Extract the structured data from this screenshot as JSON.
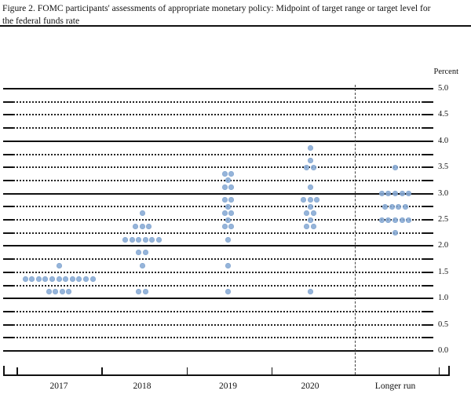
{
  "title": {
    "line1": "Figure 2. FOMC participants' assessments of appropriate monetary policy: Midpoint of target range or target level for",
    "line2": "the federal funds rate"
  },
  "chart_data": {
    "type": "scatter",
    "subtype": "fomc-dot-plot",
    "title": "FOMC participants' assessments of appropriate monetary policy",
    "ylabel": "Percent",
    "xlabel": "",
    "ylim": [
      0.0,
      5.0
    ],
    "gridline_step": 0.25,
    "solid_gridlines_at": [
      0.0,
      1.0,
      2.0,
      3.0,
      4.0,
      5.0
    ],
    "y_tick_labels": [
      "5.0",
      "4.5",
      "4.0",
      "3.5",
      "3.0",
      "2.5",
      "2.0",
      "1.5",
      "1.0",
      "0.5",
      "0.0"
    ],
    "y_tick_values": [
      5.0,
      4.5,
      4.0,
      3.5,
      3.0,
      2.5,
      2.0,
      1.5,
      1.0,
      0.5,
      0.0
    ],
    "categories": [
      "2017",
      "2018",
      "2019",
      "2020",
      "Longer run"
    ],
    "legend": [],
    "grid": "dotted-quarter-point-lines, solid at integers",
    "separator": "vertical dashed line before Longer run",
    "dot_color": "#86aad5",
    "series": [
      {
        "category": "2017",
        "dots": [
          {
            "rate": 1.625,
            "count": 1
          },
          {
            "rate": 1.375,
            "count": 11
          },
          {
            "rate": 1.125,
            "count": 4
          }
        ]
      },
      {
        "category": "2018",
        "dots": [
          {
            "rate": 2.625,
            "count": 1
          },
          {
            "rate": 2.375,
            "count": 3
          },
          {
            "rate": 2.125,
            "count": 6
          },
          {
            "rate": 1.875,
            "count": 2
          },
          {
            "rate": 1.625,
            "count": 1
          },
          {
            "rate": 1.125,
            "count": 2
          }
        ]
      },
      {
        "category": "2019",
        "dots": [
          {
            "rate": 3.375,
            "count": 2
          },
          {
            "rate": 3.25,
            "count": 1
          },
          {
            "rate": 3.125,
            "count": 2
          },
          {
            "rate": 2.875,
            "count": 2
          },
          {
            "rate": 2.75,
            "count": 1
          },
          {
            "rate": 2.625,
            "count": 2
          },
          {
            "rate": 2.5,
            "count": 1
          },
          {
            "rate": 2.375,
            "count": 2
          },
          {
            "rate": 2.125,
            "count": 1
          },
          {
            "rate": 1.625,
            "count": 1
          },
          {
            "rate": 1.125,
            "count": 1
          }
        ]
      },
      {
        "category": "2020",
        "dots": [
          {
            "rate": 3.875,
            "count": 1
          },
          {
            "rate": 3.625,
            "count": 1
          },
          {
            "rate": 3.5,
            "count": 2
          },
          {
            "rate": 3.125,
            "count": 1
          },
          {
            "rate": 2.875,
            "count": 3
          },
          {
            "rate": 2.75,
            "count": 1
          },
          {
            "rate": 2.625,
            "count": 2
          },
          {
            "rate": 2.5,
            "count": 1
          },
          {
            "rate": 2.375,
            "count": 2
          },
          {
            "rate": 1.125,
            "count": 1
          }
        ]
      },
      {
        "category": "Longer run",
        "dots": [
          {
            "rate": 3.5,
            "count": 1
          },
          {
            "rate": 3.0,
            "count": 5
          },
          {
            "rate": 2.75,
            "count": 4
          },
          {
            "rate": 2.5,
            "count": 5
          },
          {
            "rate": 2.25,
            "count": 1
          }
        ]
      }
    ]
  },
  "axis": {
    "percent_label": "Percent",
    "x_labels": [
      "2017",
      "2018",
      "2019",
      "2020",
      "Longer run"
    ]
  }
}
